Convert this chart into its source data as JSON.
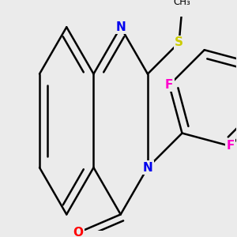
{
  "bg_color": "#ebebeb",
  "bond_color": "#000000",
  "bond_width": 1.8,
  "dbo": 0.055,
  "atom_colors": {
    "N": "#0000ee",
    "O": "#ff0000",
    "S": "#cccc00",
    "F": "#ff00cc",
    "C": "#000000"
  },
  "font_size": 11
}
